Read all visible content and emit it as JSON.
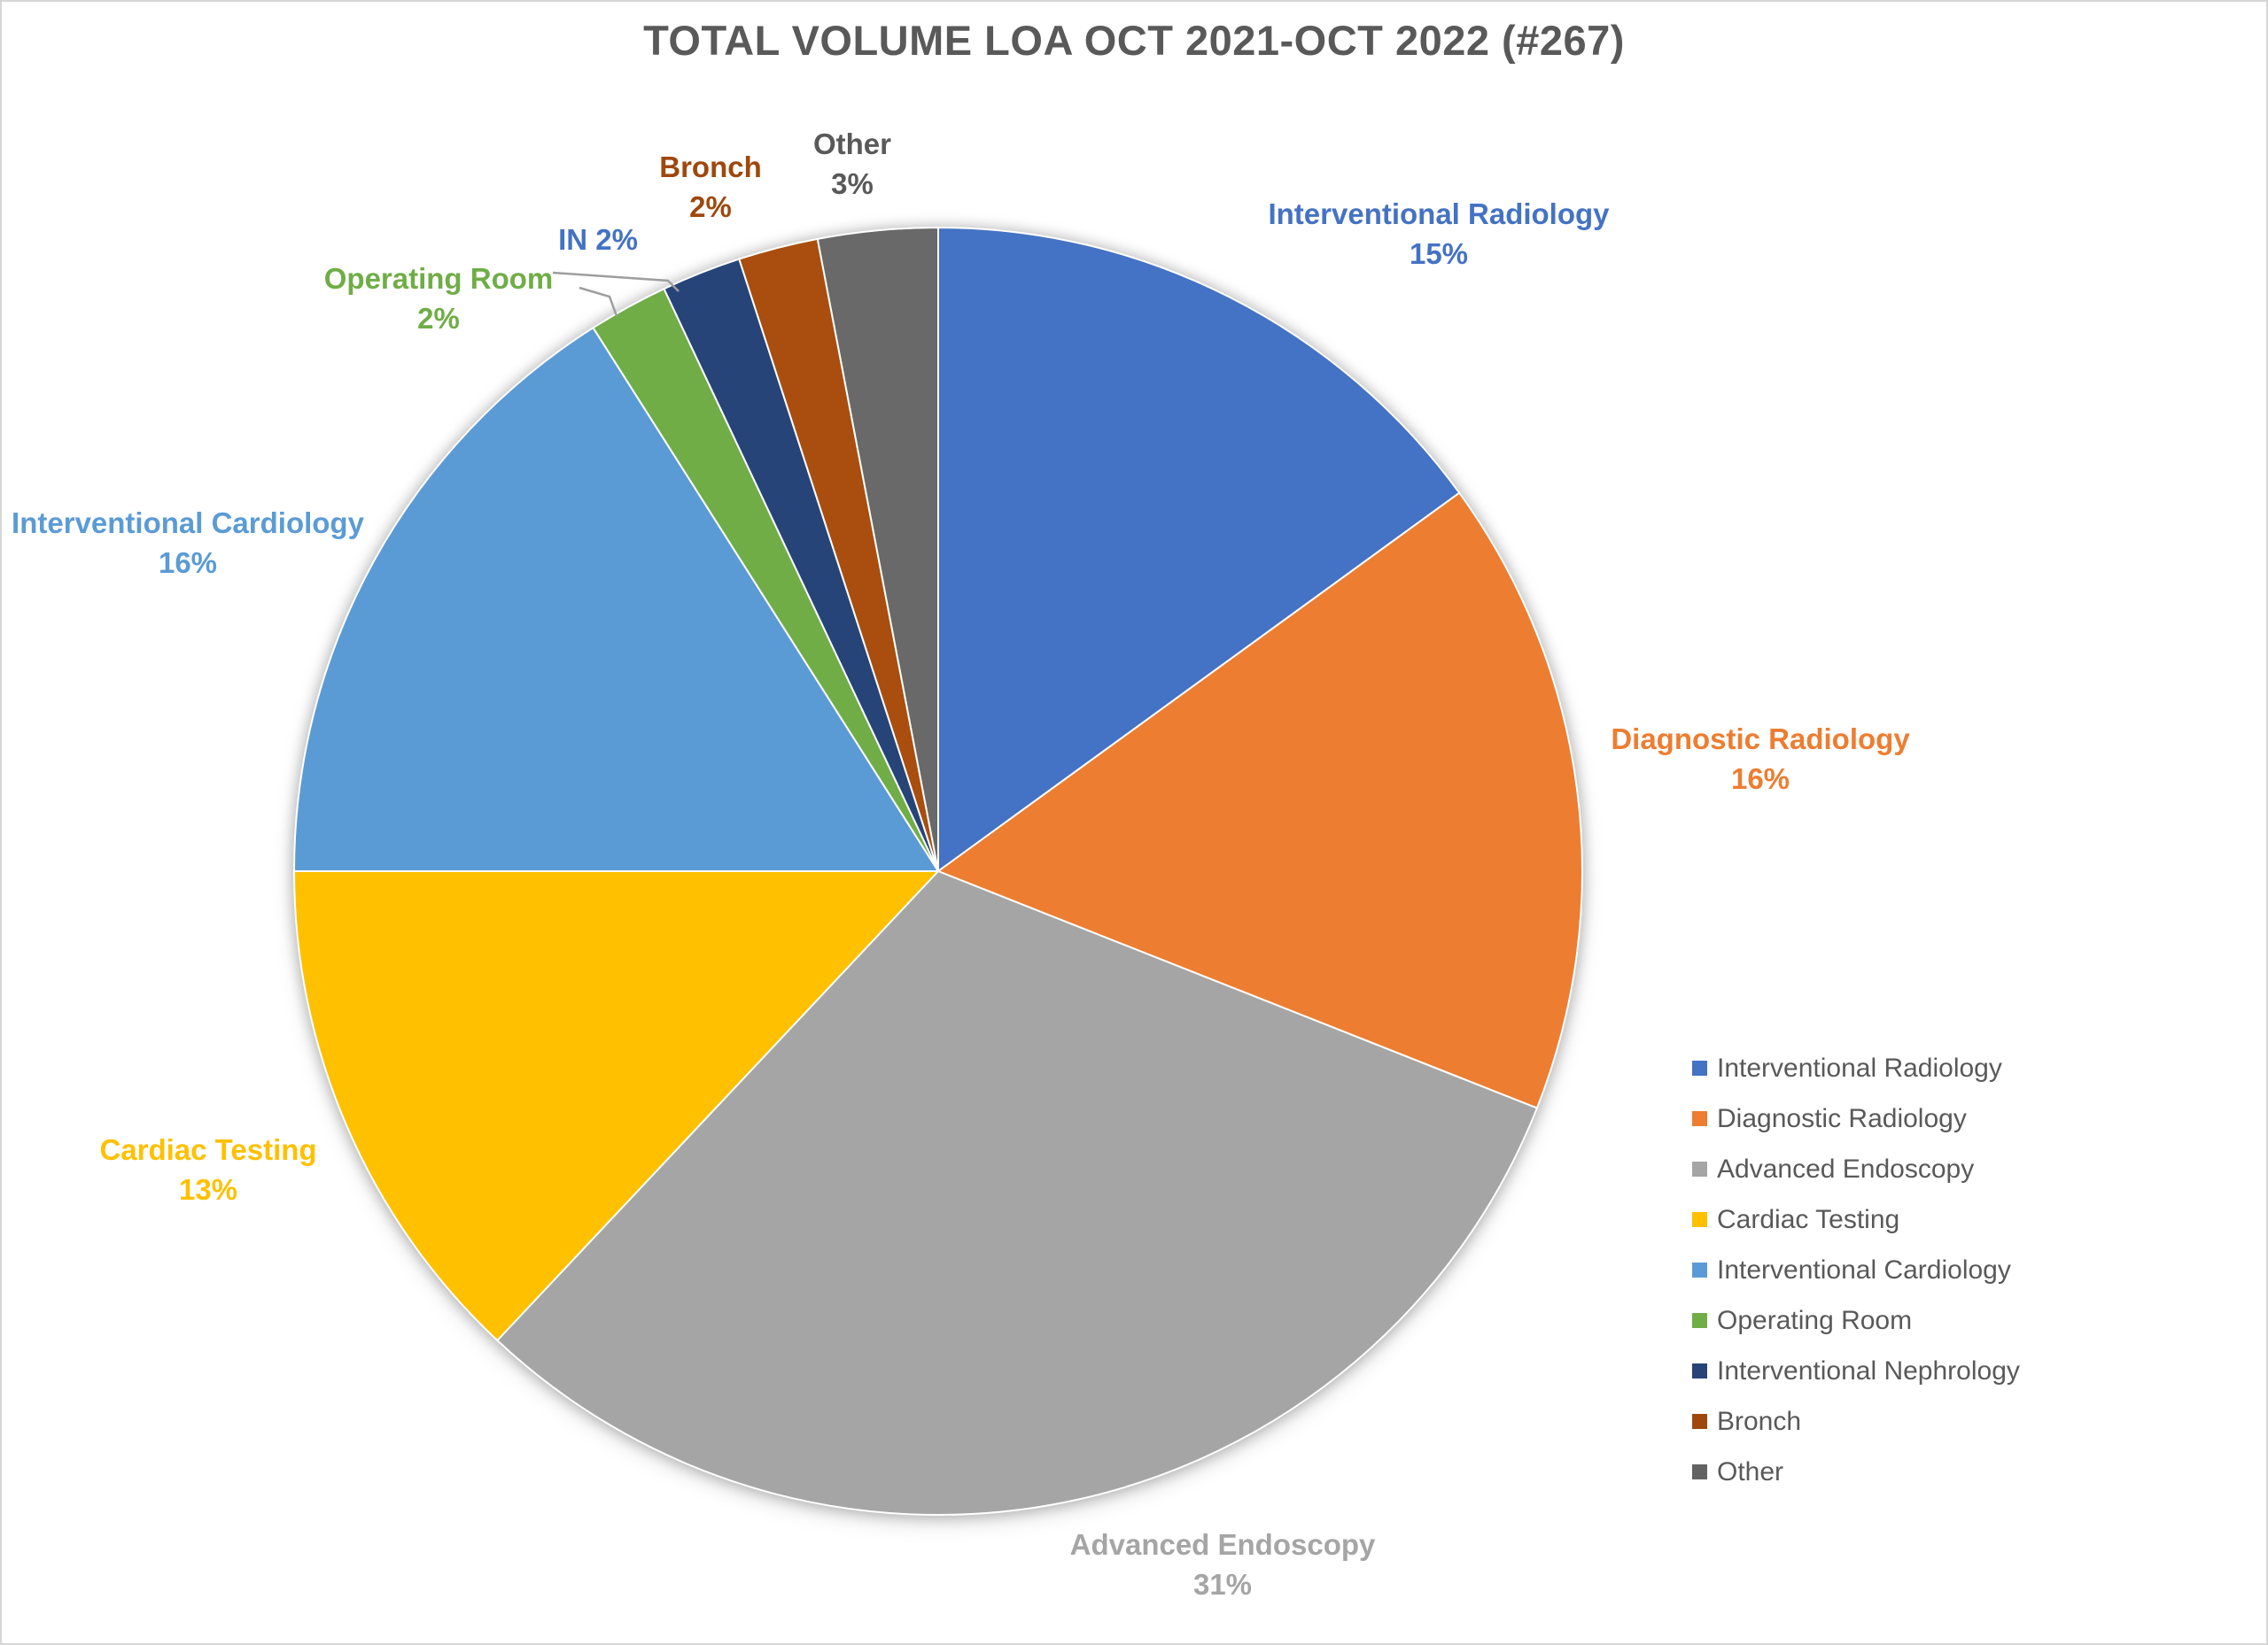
{
  "chart_data": {
    "type": "pie",
    "title": "TOTAL VOLUME LOA OCT 2021-OCT 2022 (#267)",
    "total_count": 267,
    "start_angle_deg": 0,
    "direction": "clockwise",
    "legend_position": "right",
    "background_color": "#FFFFFF",
    "border_color": "#D6D6D6",
    "title_color": "#595959",
    "leader_line_color": "#9E9E9E",
    "slices": [
      {
        "name": "Interventional Radiology",
        "pct": 15,
        "color": "#4472C4",
        "label_color": "#4472C4",
        "label_lines": [
          "Interventional Radiology",
          "15%"
        ]
      },
      {
        "name": "Diagnostic Radiology",
        "pct": 16,
        "color": "#ED7D31",
        "label_color": "#ED7D31",
        "label_lines": [
          "Diagnostic Radiology",
          "16%"
        ]
      },
      {
        "name": "Advanced Endoscopy",
        "pct": 31,
        "color": "#A5A5A5",
        "label_color": "#A5A5A5",
        "label_lines": [
          "Advanced Endoscopy",
          "31%"
        ]
      },
      {
        "name": "Cardiac Testing",
        "pct": 13,
        "color": "#FFC000",
        "label_color": "#FFC000",
        "label_lines": [
          "Cardiac Testing",
          "13%"
        ]
      },
      {
        "name": "Interventional Cardiology",
        "pct": 16,
        "color": "#5B9BD5",
        "label_color": "#5B9BD5",
        "label_lines": [
          "Interventional Cardiology",
          "16%"
        ]
      },
      {
        "name": "Operating Room",
        "pct": 2,
        "color": "#70AD47",
        "label_color": "#70AD47",
        "label_lines": [
          "Operating Room",
          "2%"
        ]
      },
      {
        "name": "Interventional Nephrology",
        "pct": 2,
        "color": "#264478",
        "label_color": "#4472C4",
        "label_lines": [
          "IN 2%"
        ]
      },
      {
        "name": "Bronch",
        "pct": 2,
        "color": "#A94E0E",
        "label_color": "#9E480E",
        "label_lines": [
          "Bronch",
          "2%"
        ]
      },
      {
        "name": "Other",
        "pct": 3,
        "color": "#696969",
        "label_color": "#595959",
        "label_lines": [
          "Other",
          "3%"
        ]
      }
    ],
    "legend_entries": [
      {
        "label": "Interventional Radiology",
        "color": "#4472C4"
      },
      {
        "label": "Diagnostic Radiology",
        "color": "#ED7D31"
      },
      {
        "label": "Advanced Endoscopy",
        "color": "#A5A5A5"
      },
      {
        "label": "Cardiac Testing",
        "color": "#FFC000"
      },
      {
        "label": "Interventional Cardiology",
        "color": "#5B9BD5"
      },
      {
        "label": "Operating Room",
        "color": "#70AD47"
      },
      {
        "label": "Interventional Nephrology",
        "color": "#264478"
      },
      {
        "label": "Bronch",
        "color": "#9E480E"
      },
      {
        "label": "Other",
        "color": "#636363"
      }
    ]
  }
}
